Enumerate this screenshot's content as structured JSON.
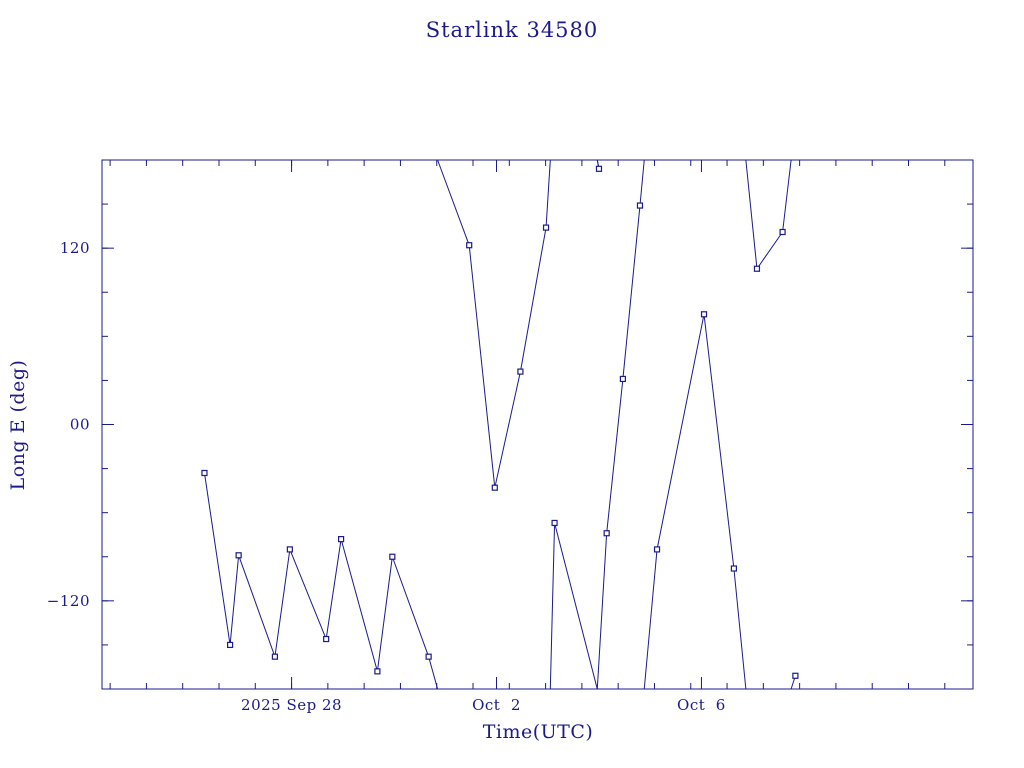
{
  "chart_data": {
    "type": "line",
    "title": "Starlink 34580",
    "xlabel": "Time(UTC)",
    "ylabel": "Long E (deg)",
    "x_unit": "day",
    "xlim": [
      "2025-09-24T07:12",
      "2025-10-11T07:12"
    ],
    "ylim": [
      -180,
      180
    ],
    "x_ticks": [
      {
        "x": "2025-09-28T00:00",
        "label": "2025 Sep 28"
      },
      {
        "x": "2025-10-02T00:00",
        "label": "Oct  2"
      },
      {
        "x": "2025-10-06T00:00",
        "label": "Oct  6"
      }
    ],
    "y_ticks": [
      {
        "y": 120,
        "label": "120"
      },
      {
        "y": 0,
        "label": "00"
      },
      {
        "y": -120,
        "label": "−120"
      }
    ],
    "x_minor_step_days": 0.7083,
    "y_minor_step": 30,
    "grid": false,
    "legend": "none",
    "marker": "square",
    "color": "#1a1a8c",
    "series": [
      {
        "points": [
          {
            "x": "2025-09-26T07:12",
            "y": -33
          },
          {
            "x": "2025-09-26T19:12",
            "y": -150
          },
          {
            "x": "2025-09-26T23:12",
            "y": -89
          },
          {
            "x": "2025-09-27T16:12",
            "y": -158
          },
          {
            "x": "2025-09-27T23:12",
            "y": -85
          },
          {
            "x": "2025-09-28T16:12",
            "y": -146
          },
          {
            "x": "2025-09-28T23:12",
            "y": -78
          },
          {
            "x": "2025-09-29T16:12",
            "y": -168
          },
          {
            "x": "2025-09-29T23:12",
            "y": -90
          },
          {
            "x": "2025-09-30T16:12",
            "y": -158
          },
          {
            "x": "2025-09-30T20:24",
            "y": -180,
            "marker": false
          },
          {
            "x": "2025-09-30T20:24",
            "y": 180,
            "marker": false
          },
          {
            "x": "2025-10-01T11:12",
            "y": 122
          },
          {
            "x": "2025-10-01T23:12",
            "y": -43
          },
          {
            "x": "2025-10-02T11:12",
            "y": 36
          },
          {
            "x": "2025-10-02T23:12",
            "y": 134
          },
          {
            "x": "2025-10-03T01:12",
            "y": 180,
            "marker": false
          },
          {
            "x": "2025-10-03T01:12",
            "y": -180,
            "marker": false
          },
          {
            "x": "2025-10-03T03:12",
            "y": -67
          },
          {
            "x": "2025-10-03T23:12",
            "y": -180,
            "marker": false
          },
          {
            "x": "2025-10-03T23:12",
            "y": 180,
            "marker": false
          },
          {
            "x": "2025-10-04T00:00",
            "y": 174
          },
          {
            "x": "2025-10-03T23:12",
            "y": 180,
            "marker": false
          },
          {
            "x": "2025-10-03T23:12",
            "y": -180,
            "marker": false
          },
          {
            "x": "2025-10-04T03:36",
            "y": -74
          },
          {
            "x": "2025-10-04T11:12",
            "y": 31
          },
          {
            "x": "2025-10-04T19:12",
            "y": 149
          },
          {
            "x": "2025-10-04T21:12",
            "y": 180,
            "marker": false
          },
          {
            "x": "2025-10-04T21:12",
            "y": -180,
            "marker": false
          },
          {
            "x": "2025-10-05T03:12",
            "y": -85
          },
          {
            "x": "2025-10-06T01:12",
            "y": 75
          },
          {
            "x": "2025-10-06T15:12",
            "y": -98
          },
          {
            "x": "2025-10-06T20:48",
            "y": -180,
            "marker": false
          },
          {
            "x": "2025-10-06T20:48",
            "y": 180,
            "marker": false
          },
          {
            "x": "2025-10-07T02:00",
            "y": 106
          },
          {
            "x": "2025-10-07T14:00",
            "y": 131
          },
          {
            "x": "2025-10-07T18:00",
            "y": 180,
            "marker": false
          },
          {
            "x": "2025-10-07T18:00",
            "y": -180,
            "marker": false
          },
          {
            "x": "2025-10-07T20:00",
            "y": -171
          }
        ]
      }
    ]
  }
}
